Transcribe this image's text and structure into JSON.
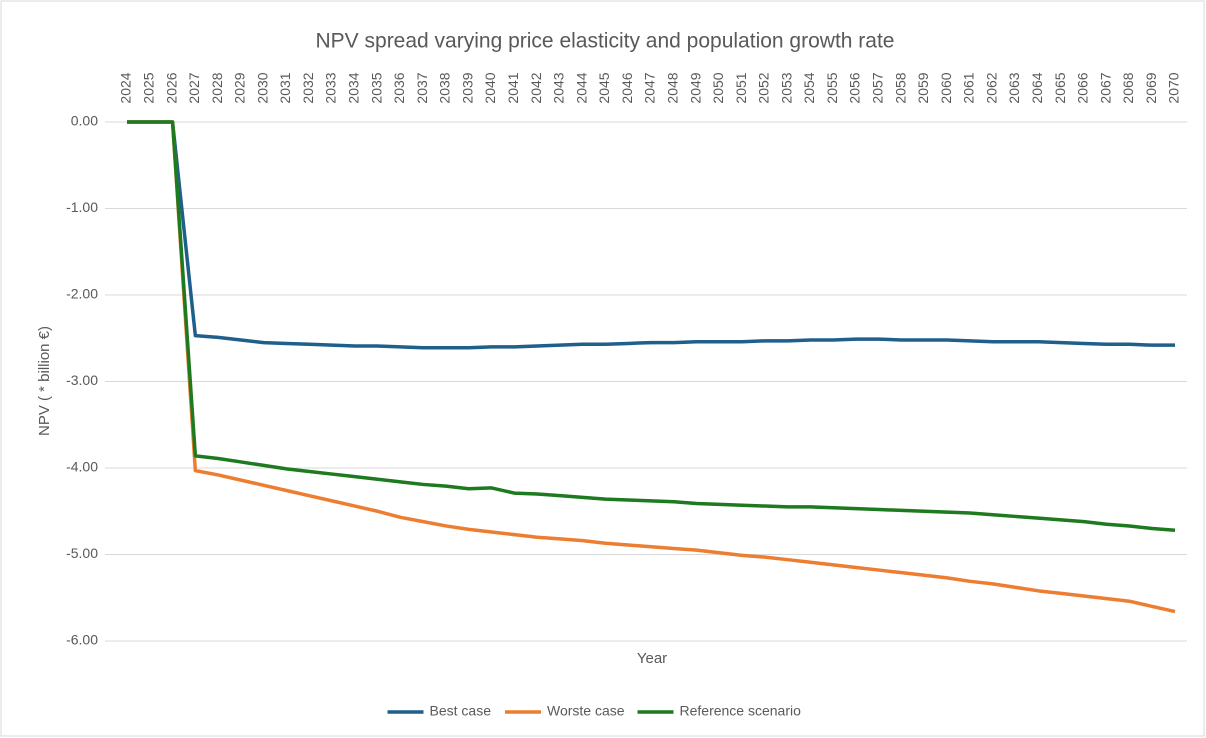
{
  "chart_data": {
    "type": "line",
    "title": "NPV spread varying price elasticity and population growth rate",
    "x_label": "Year",
    "y_label": "NPV ( * billion €)",
    "categories": [
      "2024",
      "2025",
      "2026",
      "2027",
      "2028",
      "2029",
      "2030",
      "2031",
      "2032",
      "2033",
      "2034",
      "2035",
      "2036",
      "2037",
      "2038",
      "2039",
      "2040",
      "2041",
      "2042",
      "2043",
      "2044",
      "2045",
      "2046",
      "2047",
      "2048",
      "2049",
      "2050",
      "2051",
      "2052",
      "2053",
      "2054",
      "2055",
      "2056",
      "2057",
      "2058",
      "2059",
      "2060",
      "2061",
      "2062",
      "2063",
      "2064",
      "2065",
      "2066",
      "2067",
      "2068",
      "2069",
      "2070"
    ],
    "series": [
      {
        "name": "Best case",
        "color": "#1f5f8b",
        "values": [
          0,
          0,
          0,
          -2.47,
          -2.49,
          -2.52,
          -2.55,
          -2.56,
          -2.57,
          -2.58,
          -2.59,
          -2.59,
          -2.6,
          -2.61,
          -2.61,
          -2.61,
          -2.6,
          -2.6,
          -2.59,
          -2.58,
          -2.57,
          -2.57,
          -2.56,
          -2.55,
          -2.55,
          -2.54,
          -2.54,
          -2.54,
          -2.53,
          -2.53,
          -2.52,
          -2.52,
          -2.51,
          -2.51,
          -2.52,
          -2.52,
          -2.52,
          -2.53,
          -2.54,
          -2.54,
          -2.54,
          -2.55,
          -2.56,
          -2.57,
          -2.57,
          -2.58,
          -2.58
        ]
      },
      {
        "name": "Worste case",
        "color": "#ed7d31",
        "values": [
          0,
          0,
          0,
          -4.03,
          -4.08,
          -4.14,
          -4.2,
          -4.26,
          -4.32,
          -4.38,
          -4.44,
          -4.5,
          -4.57,
          -4.62,
          -4.67,
          -4.71,
          -4.74,
          -4.77,
          -4.8,
          -4.82,
          -4.84,
          -4.87,
          -4.89,
          -4.91,
          -4.93,
          -4.95,
          -4.98,
          -5.01,
          -5.03,
          -5.06,
          -5.09,
          -5.12,
          -5.15,
          -5.18,
          -5.21,
          -5.24,
          -5.27,
          -5.31,
          -5.34,
          -5.38,
          -5.42,
          -5.45,
          -5.48,
          -5.51,
          -5.54,
          -5.6,
          -5.66
        ]
      },
      {
        "name": "Reference scenario",
        "color": "#1e7a1e",
        "values": [
          0,
          0,
          0,
          -3.86,
          -3.89,
          -3.93,
          -3.97,
          -4.01,
          -4.04,
          -4.07,
          -4.1,
          -4.13,
          -4.16,
          -4.19,
          -4.21,
          -4.24,
          -4.23,
          -4.29,
          -4.3,
          -4.32,
          -4.34,
          -4.36,
          -4.37,
          -4.38,
          -4.39,
          -4.41,
          -4.42,
          -4.43,
          -4.44,
          -4.45,
          -4.45,
          -4.46,
          -4.47,
          -4.48,
          -4.49,
          -4.5,
          -4.51,
          -4.52,
          -4.54,
          -4.56,
          -4.58,
          -4.6,
          -4.62,
          -4.65,
          -4.67,
          -4.7,
          -4.72
        ]
      }
    ],
    "ylim": [
      -6,
      0
    ],
    "yticks": [
      {
        "value": 0,
        "label": "0.00"
      },
      {
        "value": -1,
        "label": "-1.00"
      },
      {
        "value": -2,
        "label": "-2.00"
      },
      {
        "value": -3,
        "label": "-3.00"
      },
      {
        "value": -4,
        "label": "-4.00"
      },
      {
        "value": -5,
        "label": "-5.00"
      },
      {
        "value": -6,
        "label": "-6.00"
      }
    ],
    "grid": true,
    "legend": "bottom"
  }
}
